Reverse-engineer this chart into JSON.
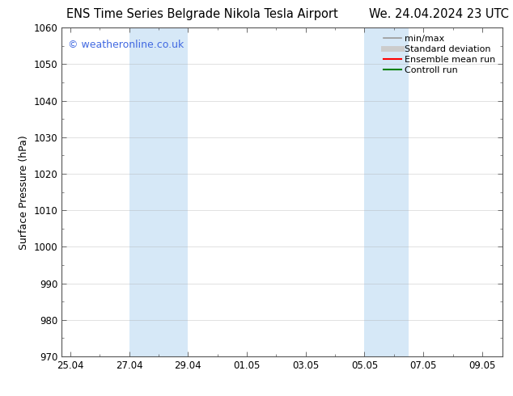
{
  "title_left": "ENS Time Series Belgrade Nikola Tesla Airport",
  "title_right": "We. 24.04.2024 23 UTC",
  "ylabel": "Surface Pressure (hPa)",
  "xlabel_ticks": [
    "25.04",
    "27.04",
    "29.04",
    "01.05",
    "03.05",
    "05.05",
    "07.05",
    "09.05"
  ],
  "ylim": [
    970,
    1060
  ],
  "yticks": [
    970,
    980,
    990,
    1000,
    1010,
    1020,
    1030,
    1040,
    1050,
    1060
  ],
  "x_ticks_pos": [
    0,
    2,
    4,
    6,
    8,
    10,
    12,
    14
  ],
  "xlim": [
    -0.3,
    14.7
  ],
  "shaded_bands": [
    {
      "x_start": 2.0,
      "x_end": 4.0
    },
    {
      "x_start": 10.0,
      "x_end": 11.5
    }
  ],
  "shaded_color": "#d6e8f7",
  "background_color": "#ffffff",
  "watermark_text": "© weatheronline.co.uk",
  "watermark_color": "#4169e1",
  "legend_items": [
    {
      "label": "min/max",
      "color": "#999999",
      "lw": 1.2,
      "style": "solid"
    },
    {
      "label": "Standard deviation",
      "color": "#cccccc",
      "lw": 5,
      "style": "solid"
    },
    {
      "label": "Ensemble mean run",
      "color": "#ff0000",
      "lw": 1.5,
      "style": "solid"
    },
    {
      "label": "Controll run",
      "color": "#008000",
      "lw": 1.5,
      "style": "solid"
    }
  ],
  "title_fontsize": 10.5,
  "ylabel_fontsize": 9,
  "tick_fontsize": 8.5,
  "legend_fontsize": 8,
  "watermark_fontsize": 9,
  "grid_color": "#aaaaaa",
  "grid_alpha": 0.5,
  "grid_lw": 0.5
}
